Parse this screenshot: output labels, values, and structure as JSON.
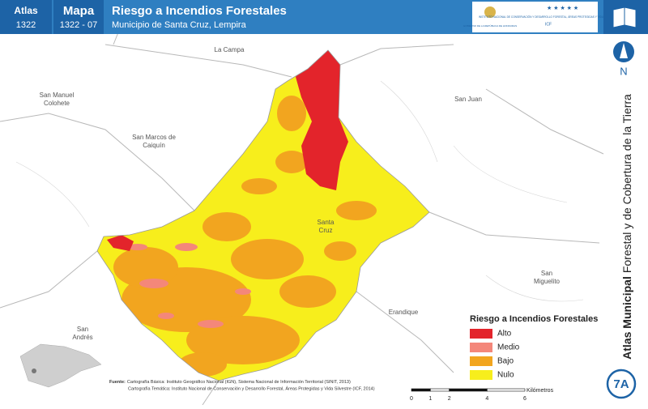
{
  "header": {
    "atlas_label": "Atlas",
    "atlas_number": "1322",
    "map_label": "Mapa",
    "map_number": "1322 - 07",
    "title": "Riesgo a Incendios Forestales",
    "subtitle": "Municipio de Santa Cruz, Lempira",
    "logos": [
      "GOBIERNO DE LA REPÚBLICA DE HONDURAS",
      "INSTITUTO NACIONAL DE CONSERVACIÓN Y DESARROLLO FORESTAL, ÁREAS PROTEGIDAS Y VIDA SILVESTRE",
      "ICF"
    ]
  },
  "sidebar": {
    "north": "N",
    "atlas_title_bold": "Atlas Municipal",
    "atlas_title_rest": "Forestal y de Cobertura de la Tierra",
    "page": "7A"
  },
  "places": [
    [
      "La Campa"
    ],
    [
      "San Manuel",
      "Colohete"
    ],
    [
      "San Juan"
    ],
    [
      "San Marcos de",
      "Caiquín"
    ],
    [
      "Santa",
      "Cruz"
    ],
    [
      "San",
      "Miguelito"
    ],
    [
      "Erandique"
    ],
    [
      "San",
      "Andrés"
    ]
  ],
  "legend": {
    "title": "Riesgo a Incendios Forestales",
    "items": [
      {
        "label": "Alto",
        "color": "#e3242b"
      },
      {
        "label": "Medio",
        "color": "#f4877a"
      },
      {
        "label": "Bajo",
        "color": "#f2a51f"
      },
      {
        "label": "Nulo",
        "color": "#f7ee1c"
      }
    ]
  },
  "scale": {
    "ticks": [
      0,
      1,
      2,
      4,
      6
    ],
    "unit": "Kilómetros"
  },
  "source": {
    "label": "Fuente:",
    "lines": [
      "Cartografía Básica: Instituto Geográfico Nacional (IGN), Sistema Nacional de Información Territorial (SINIT, 2013)",
      "Cartografía Temática: Instituto Nacional de Conservación y Desarrollo Forestal, Áreas Protegidas y Vida Silvestre (ICF, 2014)"
    ]
  }
}
